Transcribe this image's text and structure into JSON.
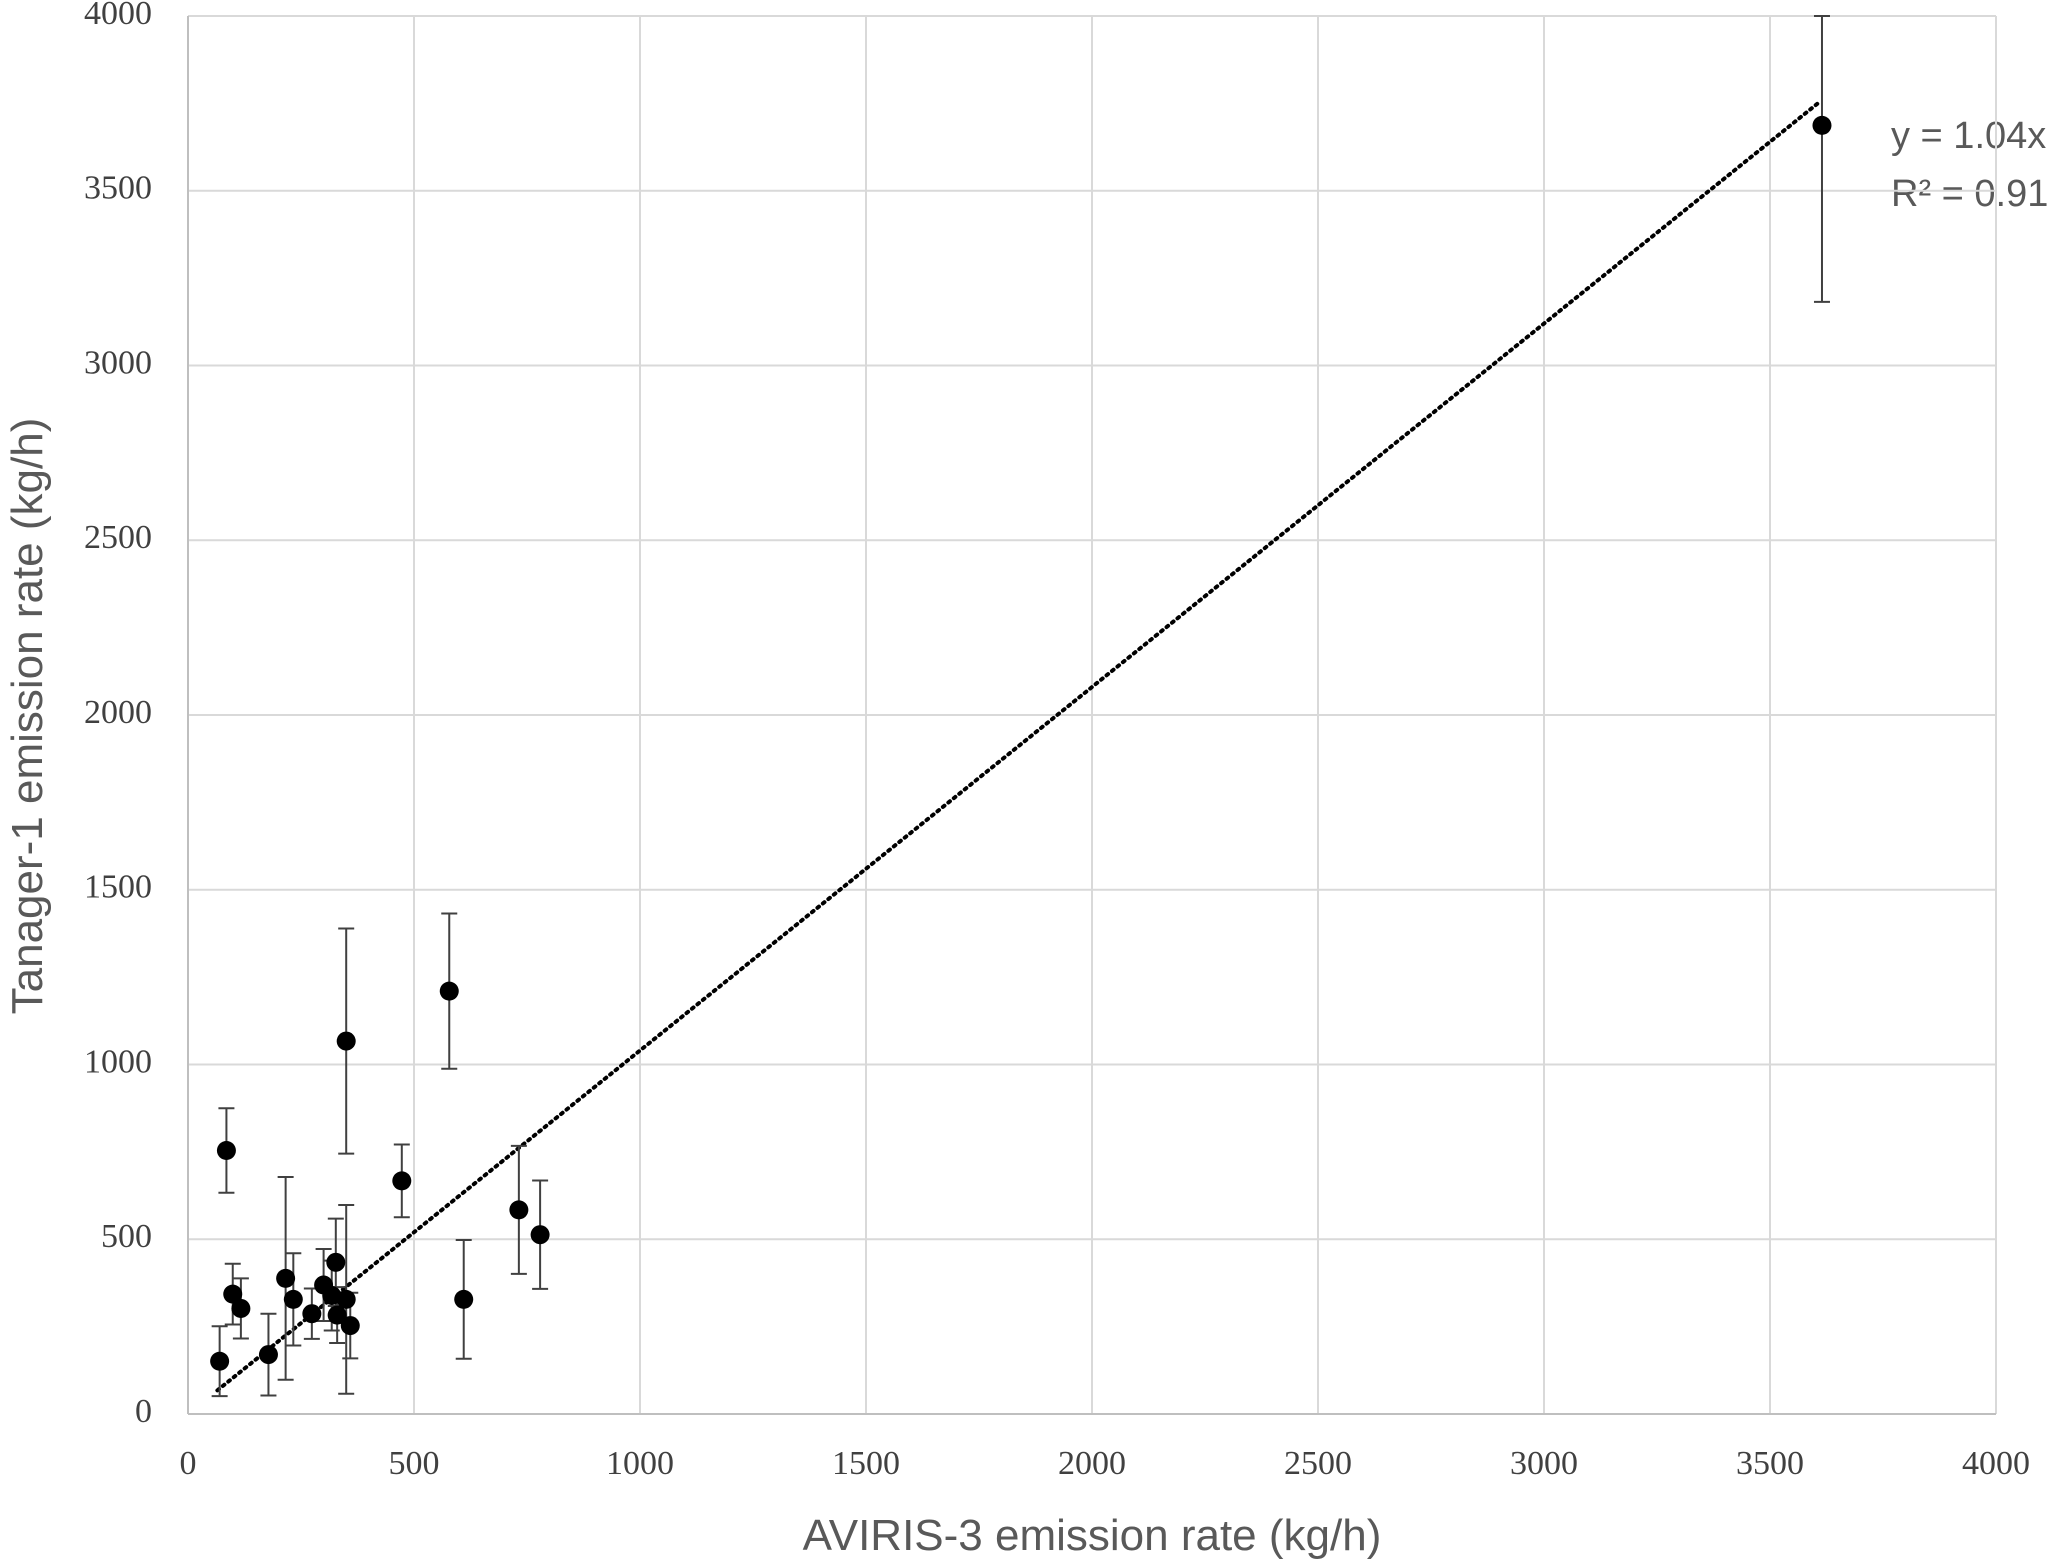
{
  "chart_data": {
    "type": "scatter",
    "xlabel": "AVIRIS-3 emission rate (kg/h)",
    "ylabel": "Tanager-1 emission rate (kg/h)",
    "xlim": [
      0,
      4000
    ],
    "xticks": [
      0,
      500,
      1000,
      1500,
      2000,
      2500,
      3000,
      3500,
      4000
    ],
    "ylim": [
      0,
      4000
    ],
    "yticks": [
      0,
      500,
      1000,
      1500,
      2000,
      2500,
      3000,
      3500,
      4000
    ],
    "grid": true,
    "series": [
      {
        "color": "#000000",
        "x": [
          70,
          85,
          99,
          117,
          178,
          216,
          233,
          274,
          300,
          318,
          327,
          330,
          350,
          350,
          359,
          473,
          578,
          610,
          732,
          779,
          3615
        ],
        "y": [
          151,
          754,
          343,
          302,
          170,
          388,
          328,
          287,
          369,
          339,
          434,
          283,
          328,
          1067,
          253,
          667,
          1210,
          328,
          584,
          513,
          3687
        ],
        "errors": [
          100,
          121,
          87,
          86,
          117,
          290,
          132,
          72,
          103,
          100,
          125,
          80,
          270,
          322,
          94,
          104,
          222,
          170,
          183,
          155,
          505
        ]
      }
    ],
    "trendline": {
      "slope": 1.04,
      "x": [
        65,
        3610
      ],
      "label": "y = 1.04x",
      "r2_label": "R² = 0.91"
    }
  }
}
